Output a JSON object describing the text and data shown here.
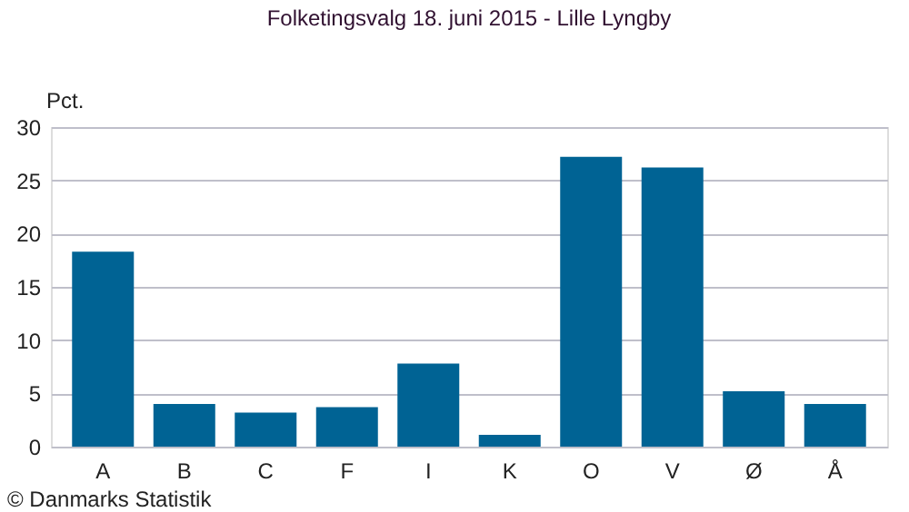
{
  "chart_data": {
    "type": "bar",
    "title": "Folketingsvalg 18. juni 2015 - Lille Lyngby",
    "ylabel": "Pct.",
    "categories": [
      "A",
      "B",
      "C",
      "F",
      "I",
      "K",
      "O",
      "V",
      "Ø",
      "Å"
    ],
    "values": [
      18.3,
      4.0,
      3.2,
      3.7,
      7.8,
      1.1,
      27.2,
      26.2,
      5.2,
      4.0
    ],
    "color": "#006394",
    "ylim": [
      0,
      30
    ],
    "yticks": [
      0,
      5,
      10,
      15,
      20,
      25,
      30
    ],
    "grid": "y",
    "annotations": [
      "© Danmarks Statistik"
    ]
  }
}
